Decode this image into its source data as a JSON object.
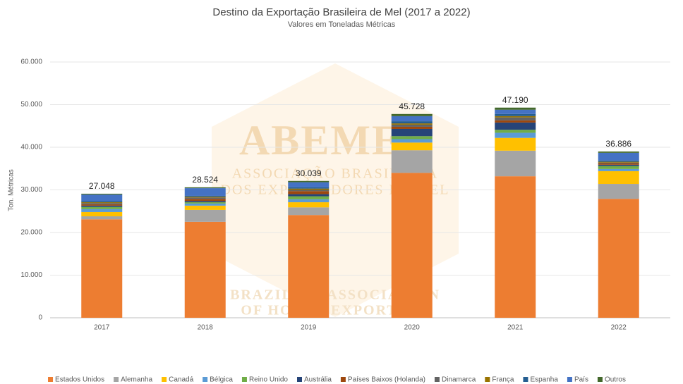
{
  "chart_data": {
    "type": "stacked_bar",
    "title": "Destino da Exportação Brasileira de Mel (2017 a 2022)",
    "subtitle": "Valores em Toneladas Métricas",
    "y_label": "Ton. Métricas",
    "watermark": [
      "ABEMEL",
      "ASSOCIAÇÃO BRASILEIRA",
      "DOS EXPORTADORES DE MEL",
      "BRAZILIAN ASSOCIATION",
      "OF HONEY EXPORTERS"
    ],
    "categories": [
      "2017",
      "2018",
      "2019",
      "2020",
      "2021",
      "2022"
    ],
    "series": [
      {
        "name": "Estados Unidos",
        "color": "#ed7d31",
        "values": [
          23100,
          22500,
          24100,
          34000,
          33200,
          27900
        ]
      },
      {
        "name": "Alemanha",
        "color": "#a5a5a5",
        "values": [
          700,
          2800,
          1800,
          5300,
          6000,
          3500
        ]
      },
      {
        "name": "Canadá",
        "color": "#ffc000",
        "values": [
          1000,
          1000,
          1200,
          1800,
          3000,
          3000
        ]
      },
      {
        "name": "Bélgica",
        "color": "#5b9bd5",
        "values": [
          700,
          500,
          700,
          800,
          1200,
          500
        ]
      },
      {
        "name": "Reino Unido",
        "color": "#70ad47",
        "values": [
          500,
          300,
          700,
          700,
          700,
          700
        ]
      },
      {
        "name": "Austrália",
        "color": "#264478",
        "values": [
          300,
          300,
          500,
          1700,
          1700,
          300
        ]
      },
      {
        "name": "Países Baixos (Holanda)",
        "color": "#9e480e",
        "values": [
          300,
          500,
          700,
          500,
          500,
          300
        ]
      },
      {
        "name": "Dinamarca",
        "color": "#636363",
        "values": [
          300,
          300,
          300,
          500,
          700,
          200
        ]
      },
      {
        "name": "França",
        "color": "#997300",
        "values": [
          200,
          200,
          300,
          300,
          300,
          200
        ]
      },
      {
        "name": "Espanha",
        "color": "#255e91",
        "values": [
          300,
          200,
          300,
          500,
          500,
          300
        ]
      },
      {
        "name": "País",
        "color": "#4472c4",
        "values": [
          1500,
          1800,
          1200,
          1200,
          1000,
          1800
        ]
      },
      {
        "name": "Outros",
        "color": "#43682b",
        "values": [
          200,
          200,
          300,
          500,
          500,
          300
        ]
      }
    ],
    "totals": {
      "values": [
        27048,
        28524,
        30039,
        45728,
        47190,
        36886
      ],
      "value_labels": [
        "27.048",
        "28.524",
        "30.039",
        "45.728",
        "47.190",
        "36.886"
      ]
    },
    "ylim": [
      0,
      60000
    ],
    "yticks": [
      0,
      {
        "value": 10000,
        "label": "10.000"
      },
      {
        "value": 20000,
        "label": "20.000"
      },
      {
        "value": 30000,
        "label": "30.000"
      },
      {
        "value": 40000,
        "label": "40.000"
      },
      {
        "value": 50000,
        "label": "50.000"
      },
      {
        "value": 60000,
        "label": "60.000"
      }
    ],
    "grid": true,
    "legend": "bottom"
  }
}
